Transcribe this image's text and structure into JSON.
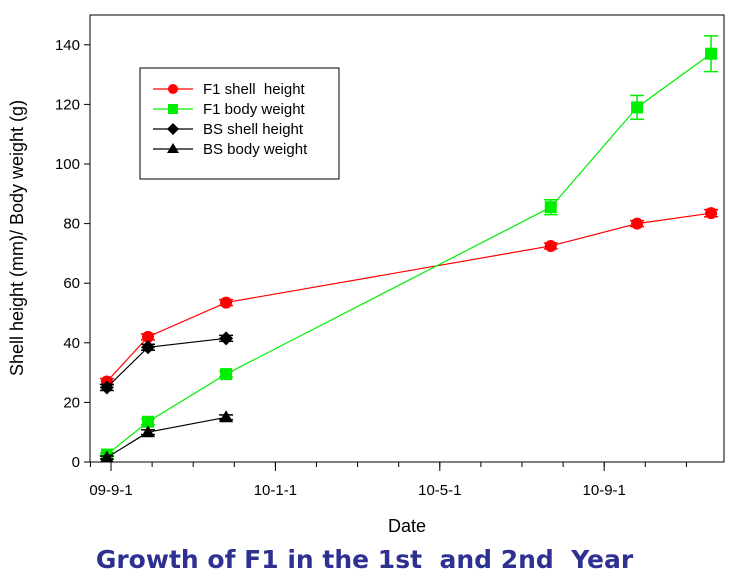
{
  "chart_data": {
    "type": "line",
    "title": "Growth of F1 in the 1st  and 2nd  Year",
    "xlabel": "Date",
    "ylabel": "Shell height (mm)/ Body weight (g)",
    "x_unit": "months since 09-9-1",
    "xlim": [
      -0.5,
      14.9
    ],
    "ylim": [
      0,
      150
    ],
    "yticks": [
      0,
      20,
      40,
      60,
      80,
      100,
      120,
      140
    ],
    "ytick_labels": [
      "0",
      "20",
      "40",
      "60",
      "80",
      "100",
      "120",
      "140"
    ],
    "xticks": [
      0,
      4,
      8,
      12
    ],
    "xtick_labels": [
      "09-9-1",
      "10-1-1",
      "10-5-1",
      "10-9-1"
    ],
    "x_minor_ticks": [
      -0.5,
      0,
      1,
      2,
      3,
      4,
      5,
      6,
      7,
      8,
      9,
      10,
      11,
      12,
      13,
      14
    ],
    "grid": false,
    "legend_position": "top-left",
    "series": [
      {
        "name": "F1 shell  height",
        "color": "#ff0000",
        "marker": "circle",
        "x": [
          -0.1,
          0.9,
          2.8,
          10.7,
          12.8,
          14.6
        ],
        "values": [
          27,
          42,
          53.5,
          72.5,
          80,
          83.5
        ],
        "errors": [
          1,
          1,
          1,
          1,
          1,
          1.2
        ]
      },
      {
        "name": "F1 body weight",
        "color": "#00ee00",
        "marker": "square",
        "x": [
          -0.1,
          0.9,
          2.8,
          10.7,
          12.8,
          14.6
        ],
        "values": [
          2.5,
          13.5,
          29.5,
          85.5,
          119,
          137
        ],
        "errors": [
          0.5,
          1,
          1,
          2.5,
          4,
          6
        ]
      },
      {
        "name": "BS shell height",
        "color": "#000000",
        "marker": "diamond",
        "x": [
          -0.1,
          0.9,
          2.8
        ],
        "values": [
          25,
          38.5,
          41.5
        ],
        "errors": [
          1,
          1,
          1
        ]
      },
      {
        "name": "BS body weight",
        "color": "#000000",
        "marker": "triangle",
        "x": [
          -0.1,
          0.9,
          2.8
        ],
        "values": [
          1.5,
          10,
          15
        ],
        "errors": [
          0.5,
          0.8,
          0.8
        ]
      }
    ]
  }
}
